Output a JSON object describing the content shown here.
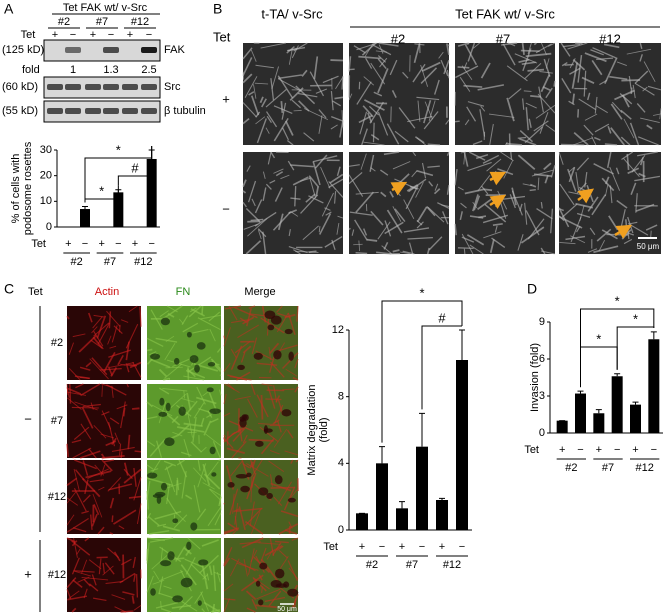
{
  "panel_labels": [
    "A",
    "B",
    "C",
    "D"
  ],
  "blot": {
    "header": "Tet FAK wt/ v-Src",
    "groups": [
      "#2",
      "#7",
      "#12"
    ],
    "tet_label": "Tet",
    "tet_signs": [
      "+",
      "−",
      "+",
      "−",
      "+",
      "−"
    ],
    "rows": [
      {
        "size": "(125 kD)",
        "protein": "FAK"
      },
      {
        "size": "(60 kD)",
        "protein": "Src"
      },
      {
        "size": "(55 kD)",
        "protein": "β tubulin"
      }
    ],
    "fold_label": "fold",
    "fold_values": [
      1,
      1.3,
      2.5
    ]
  },
  "micrographs_b": {
    "columns": [
      "t-TA/ v-Src",
      "#2",
      "#7",
      "#12"
    ],
    "group_header": "Tet FAK wt/ v-Src",
    "tet_label": "Tet",
    "rows": [
      "+",
      "−"
    ],
    "scale_bar": "50 μm"
  },
  "micrographs_c": {
    "tet_label": "Tet",
    "columns": [
      "Actin",
      "FN",
      "Merge"
    ],
    "rows": [
      "#2",
      "#7",
      "#12",
      "#12"
    ],
    "condition_labels": [
      "−",
      "+"
    ],
    "scale_bar": "50 μm"
  },
  "chart_data": [
    {
      "type": "bar",
      "ylabel": [
        "% of cells with",
        "podosome rosettes"
      ],
      "x_row_label": "Tet",
      "categories": [
        "+",
        "−",
        "+",
        "−",
        "+",
        "−"
      ],
      "groups": [
        "#2",
        "#7",
        "#12"
      ],
      "values": [
        0,
        7,
        0,
        13.5,
        0,
        26.5
      ],
      "errors": [
        0,
        1,
        0,
        1,
        0,
        3.5
      ],
      "color": "#000000",
      "ylim": [
        0,
        30
      ],
      "yticks": [
        0,
        10,
        20,
        30
      ],
      "annotations": [
        "*",
        "*",
        "#"
      ]
    },
    {
      "type": "bar",
      "ylabel": [
        "Matrix degradation",
        "(fold)"
      ],
      "x_row_label": "Tet",
      "categories": [
        "+",
        "−",
        "+",
        "−",
        "+",
        "−"
      ],
      "groups": [
        "#2",
        "#7",
        "#12"
      ],
      "values": [
        1,
        4,
        1.3,
        5,
        1.8,
        10.2
      ],
      "errors": [
        0,
        1,
        0.4,
        2,
        0.1,
        1.8
      ],
      "color": "#000000",
      "ylim": [
        0,
        12
      ],
      "yticks": [
        0,
        4,
        8,
        12
      ],
      "annotations": [
        "*",
        "#"
      ]
    },
    {
      "type": "bar",
      "ylabel": [
        "Invasion (fold)"
      ],
      "x_row_label": "Tet",
      "categories": [
        "+",
        "−",
        "+",
        "−",
        "+",
        "−"
      ],
      "groups": [
        "#2",
        "#7",
        "#12"
      ],
      "values": [
        1,
        3.2,
        1.6,
        4.6,
        2.3,
        7.6
      ],
      "errors": [
        0,
        0.2,
        0.3,
        0.2,
        0.2,
        0.6
      ],
      "color": "#000000",
      "ylim": [
        0,
        9
      ],
      "yticks": [
        0,
        3,
        6,
        9
      ],
      "annotations": [
        "*",
        "*",
        "*"
      ]
    }
  ]
}
